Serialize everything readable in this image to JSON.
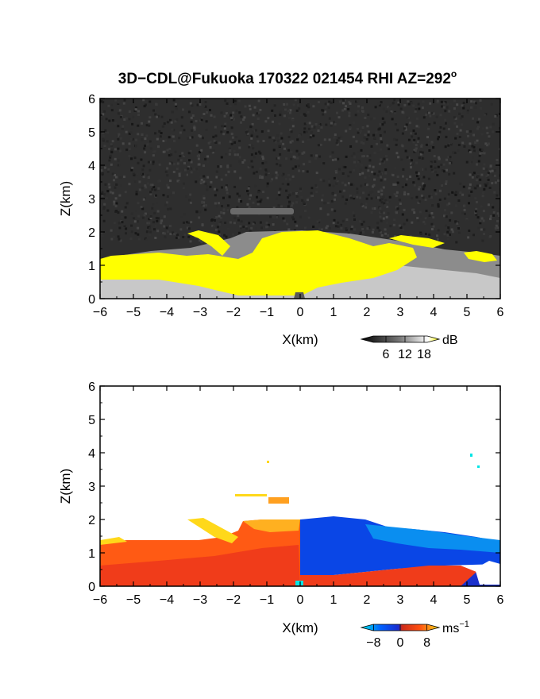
{
  "figure": {
    "title": "3D−CDL@Fukuoka 170322 021454 RHI AZ=292",
    "title_superscript": "o"
  },
  "chart_data": [
    {
      "type": "heatmap",
      "name": "snr-panel",
      "xlabel": "X(km)",
      "ylabel": "Z(km)",
      "xlim": [
        -6,
        6
      ],
      "ylim": [
        0,
        6
      ],
      "xticks": [
        "−6",
        "−5",
        "−4",
        "−3",
        "−2",
        "−1",
        "0",
        "1",
        "2",
        "3",
        "4",
        "5",
        "6"
      ],
      "yticks": [
        "0",
        "1",
        "2",
        "3",
        "4",
        "5",
        "6"
      ],
      "colorbar": {
        "label": "dB",
        "ticks": [
          "6",
          "12",
          "18"
        ],
        "range": [
          0,
          21
        ]
      },
      "background": "noise (dark gray)",
      "features": [
        {
          "kind": "saturated-fan",
          "x": [
            -2.2,
            3.6
          ],
          "z_top": 2.0,
          "value_db": 21,
          "color": "#ffff00"
        },
        {
          "kind": "near-ground-bright-layer",
          "x": [
            -6,
            6
          ],
          "z": [
            0,
            1.5
          ],
          "value_db": 14
        },
        {
          "kind": "elevated-thin-layer",
          "x": [
            -2.1,
            -0.2
          ],
          "z": 2.6,
          "value_db": 6
        }
      ]
    },
    {
      "type": "heatmap",
      "name": "doppler-velocity-panel",
      "xlabel": "X(km)",
      "ylabel": "Z(km)",
      "xlim": [
        -6,
        6
      ],
      "ylim": [
        0,
        6
      ],
      "xticks": [
        "−6",
        "−5",
        "−4",
        "−3",
        "−2",
        "−1",
        "0",
        "1",
        "2",
        "3",
        "4",
        "5",
        "6"
      ],
      "yticks": [
        "0",
        "1",
        "2",
        "3",
        "4",
        "5",
        "6"
      ],
      "colorbar": {
        "label": "ms",
        "label_superscript": "−1",
        "ticks": [
          "−8",
          "0",
          "8"
        ],
        "range": [
          -10,
          10
        ]
      },
      "features": [
        {
          "kind": "receding-flow",
          "x": [
            -6,
            0
          ],
          "z": [
            0,
            2.0
          ],
          "velocity_ms": [
            2,
            8
          ]
        },
        {
          "kind": "approaching-flow",
          "x": [
            0,
            6
          ],
          "z": [
            0.3,
            2.0
          ],
          "velocity_ms": [
            -8,
            -3
          ]
        },
        {
          "kind": "near-surface-receding-layer",
          "x": [
            0.5,
            5
          ],
          "z": [
            0,
            0.4
          ],
          "velocity_ms": [
            3,
            5
          ]
        }
      ]
    }
  ]
}
